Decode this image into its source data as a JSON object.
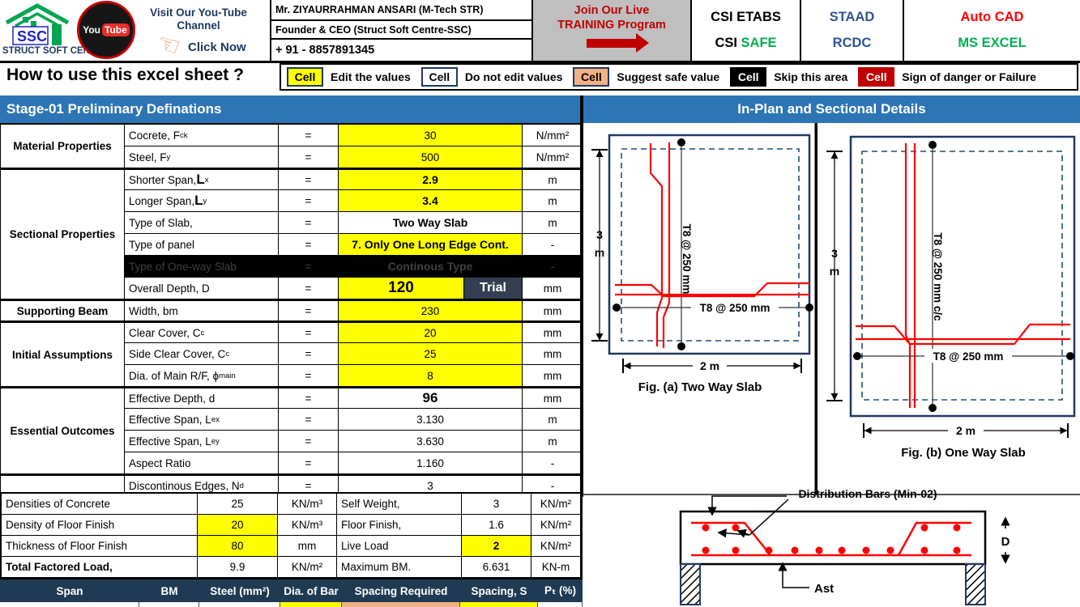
{
  "colors": {
    "accent_blue": "#2E75B6",
    "dark_navy_header": "#1F3B54",
    "trial_bg": "#333F50",
    "edit_yellow": "#FFFF00",
    "suggest_orange": "#F4B183",
    "danger_red": "#C00000",
    "safe_green": "#00B050",
    "staad_blue": "#2F5496",
    "figure_navy": "#1F3864",
    "rebar_red": "#FF0000"
  },
  "topbar": {
    "logo": {
      "ssc": "SSC",
      "org": "STRUCT SOFT CENTRE",
      "youtube_you": "You",
      "youtube_tube": "Tube",
      "visit": "Visit Our You-Tube Channel",
      "click": "Click Now",
      "hand": "☜"
    },
    "contact": {
      "name": "Mr. ZIYAURRAHMAN ANSARI (M-Tech STR)",
      "role": "Founder & CEO (Struct Soft Centre-SSC)",
      "phone": "+ 91 - 8857891345"
    },
    "training": {
      "line1": "Join Our Live",
      "line2": "TRAINING Program"
    },
    "csi": {
      "line1": "CSI ETABS",
      "line2_a": "CSI",
      "line2_b": "SAFE"
    },
    "staad": {
      "line1": "STAAD",
      "line2": "RCDC"
    },
    "acad": {
      "line1": "Auto CAD",
      "line2": "MS EXCEL"
    }
  },
  "legend": {
    "title": "How to use this excel sheet ?",
    "items": [
      {
        "chip": "Cell",
        "label": "Edit the values",
        "style": "yellow"
      },
      {
        "chip": "Cell",
        "label": "Do not edit values",
        "style": "white"
      },
      {
        "chip": "Cell",
        "label": "Suggest safe value",
        "style": "orange"
      },
      {
        "chip": "Cell",
        "label": "Skip this area",
        "style": "black"
      },
      {
        "chip": "Cell",
        "label": "Sign of danger or Failure",
        "style": "red"
      }
    ]
  },
  "stage": {
    "left_title": "Stage-01 Preliminary Definations",
    "right_title": "In-Plan and Sectional Details"
  },
  "main_table": {
    "eq": "=",
    "categories": [
      {
        "label": "Material Properties",
        "rows": 2
      },
      {
        "label": "Sectional Properties",
        "rows": 6
      },
      {
        "label": "Supporting Beam",
        "rows": 1
      },
      {
        "label": "Initial Assumptions",
        "rows": 3
      },
      {
        "label": "Essential Outcomes",
        "rows": 4
      },
      {
        "label": "",
        "rows": 1
      }
    ],
    "rows": [
      {
        "label": "Cocrete, F",
        "sub": "ck",
        "value": "30",
        "unit": "N/mm²",
        "v": "yellow"
      },
      {
        "label": "Steel, F",
        "sub": "y",
        "value": "500",
        "unit": "N/mm²",
        "v": "yellow"
      },
      {
        "label": "Shorter Span, ",
        "big": "L",
        "sub": "x",
        "value": "2.9",
        "unit": "m",
        "v": "yellow",
        "vclass": "v-b"
      },
      {
        "label": "Longer Span, ",
        "big": "L",
        "sub": "y",
        "value": "3.4",
        "unit": "m",
        "v": "yellow",
        "vclass": "v-b"
      },
      {
        "label": "Type of Slab,",
        "value": "Two Way Slab",
        "unit": "m",
        "vclass": "v-b"
      },
      {
        "label": "Type of panel",
        "value": "7. Only One Long Edge Cont.",
        "unit": "-",
        "v": "yellow",
        "vclass": "v-b"
      },
      {
        "label": "Type of One-way Slab",
        "value": "Continous Type",
        "unit": "-",
        "black": true,
        "vclass": "v-b"
      },
      {
        "label": "Overall Depth, D",
        "value": "120",
        "unit": "mm",
        "v": "yellow",
        "vclass": "v-lg",
        "trial": "Trial"
      },
      {
        "label": "Width, bm",
        "value": "230",
        "unit": "mm",
        "v": "yellow"
      },
      {
        "label": "Clear Cover, C",
        "sub": "c",
        "value": "20",
        "unit": "mm",
        "v": "yellow"
      },
      {
        "label": "Side Clear Cover, C",
        "sub": "c",
        "value": "25",
        "unit": "mm",
        "v": "yellow"
      },
      {
        "label": "Dia. of Main R/F, ϕ",
        "sub": "main",
        "value": "8",
        "unit": "mm",
        "v": "yellow"
      },
      {
        "label": "Effective Depth, d",
        "value": "96",
        "unit": "mm",
        "vclass": "v-md"
      },
      {
        "label": "Effective Span, L",
        "sub": "ex",
        "value": "3.130",
        "unit": "m"
      },
      {
        "label": "Effective Span, L",
        "sub": "ey",
        "value": "3.630",
        "unit": "m"
      },
      {
        "label": "Aspect Ratio",
        "value": "1.160",
        "unit": "-"
      },
      {
        "label": "Discontinous Edges, N",
        "sub": "d",
        "value": "3",
        "unit": "-"
      }
    ]
  },
  "loads_table": {
    "rows": [
      {
        "l1": "Densities of Concrete",
        "v1": "25",
        "u1": "KN/m³",
        "l2": "Self Weight,",
        "v2": "3",
        "u2": "KN/m²"
      },
      {
        "l1": "Density of Floor Finish",
        "v1": "20",
        "u1": "KN/m³",
        "l2": "Floor Finish,",
        "v2": "1.6",
        "u2": "KN/m²",
        "v1y": true
      },
      {
        "l1": "Thickness of Floor Finish",
        "v1": "80",
        "u1": "mm",
        "l2": "Live Load",
        "v2": "2",
        "u2": "KN/m²",
        "v1y": true,
        "v2y": true,
        "v2b": true
      },
      {
        "l1": "Total Factored Load,",
        "v1": "9.9",
        "u1": "KN/m²",
        "l2": "Maximum BM.",
        "v2": "6.631",
        "u2": "KN-m",
        "bold1": true
      }
    ]
  },
  "design_header": {
    "cols": [
      "Span",
      "BM",
      "Steel (mm²)",
      "Dia. of Bar",
      "Spacing Required",
      "Spacing, S",
      "Pₜ (%)"
    ]
  },
  "figures": {
    "fig_a": {
      "dim_h": "3",
      "dim_h_unit": "m",
      "dim_w": "2  m",
      "bar_v": "T8 @ 250 mm",
      "bar_h": "T8 @ 250 mm",
      "caption": "Fig. (a) Two Way Slab"
    },
    "fig_b": {
      "dim_h": "3",
      "dim_h_unit": "m",
      "dim_w": "2  m",
      "bar_v": "T8 @ 250 mm c/c",
      "bar_h": "T8 @ 250 mm",
      "caption": "Fig. (b) One Way Slab"
    },
    "section": {
      "top_label": "Distribution Bars (Min-02)",
      "bottom_label": "Ast",
      "depth_label": "D"
    }
  }
}
